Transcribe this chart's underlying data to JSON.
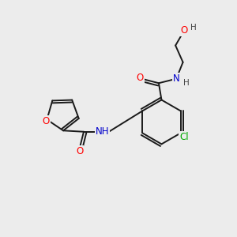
{
  "bg_color": "#ececec",
  "bond_color": "#1a1a1a",
  "atom_colors": {
    "O": "#ff0000",
    "N": "#0000cc",
    "Cl": "#00aa00",
    "H": "#444444",
    "C": "#1a1a1a"
  },
  "font_size": 8.5,
  "lw": 1.4
}
